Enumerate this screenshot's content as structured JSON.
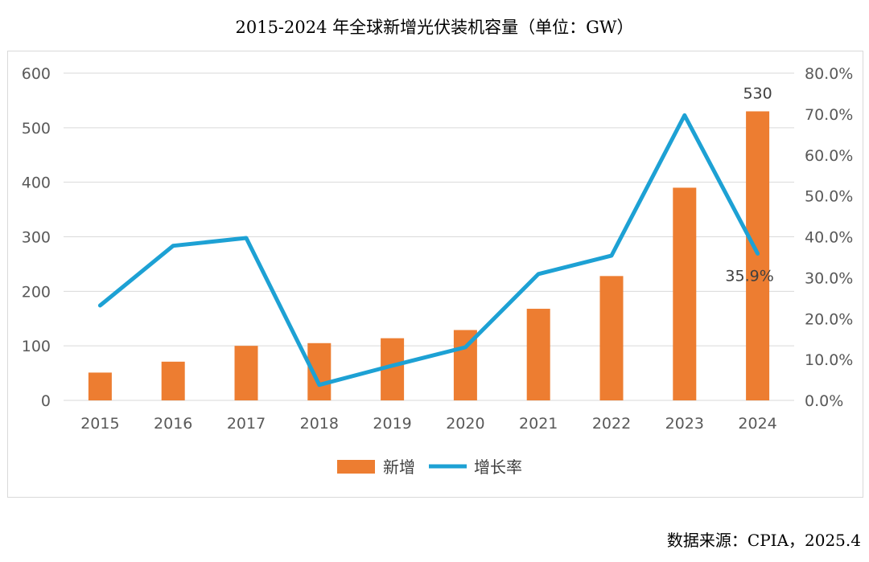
{
  "title": "2015-2024 年全球新增光伏装机容量（单位：GW）",
  "source": "数据来源：CPIA，2025.4",
  "chart_data": {
    "type": "bar",
    "categories": [
      "2015",
      "2016",
      "2017",
      "2018",
      "2019",
      "2020",
      "2021",
      "2022",
      "2023",
      "2024"
    ],
    "series": [
      {
        "name": "新增",
        "type": "bar",
        "axis": "left",
        "color": "#ED7D31",
        "values": [
          51,
          71,
          100,
          105,
          114,
          129,
          168,
          228,
          390,
          530
        ]
      },
      {
        "name": "增长率",
        "type": "line",
        "axis": "right",
        "color": "#1DA1D4",
        "values": [
          23.2,
          37.8,
          39.7,
          3.8,
          8.5,
          13.0,
          30.9,
          35.4,
          69.7,
          35.9
        ]
      }
    ],
    "ylim_left": [
      0,
      600
    ],
    "yticks_left": [
      "0",
      "100",
      "200",
      "300",
      "400",
      "500",
      "600"
    ],
    "ylim_right": [
      0,
      80
    ],
    "yticks_right": [
      "0.0%",
      "10.0%",
      "20.0%",
      "30.0%",
      "40.0%",
      "50.0%",
      "60.0%",
      "70.0%",
      "80.0%"
    ],
    "annotations": [
      {
        "series": "新增",
        "category": "2024",
        "text": "530"
      },
      {
        "series": "增长率",
        "category": "2024",
        "text": "35.9%"
      }
    ],
    "grid": true,
    "legend_position": "bottom"
  }
}
